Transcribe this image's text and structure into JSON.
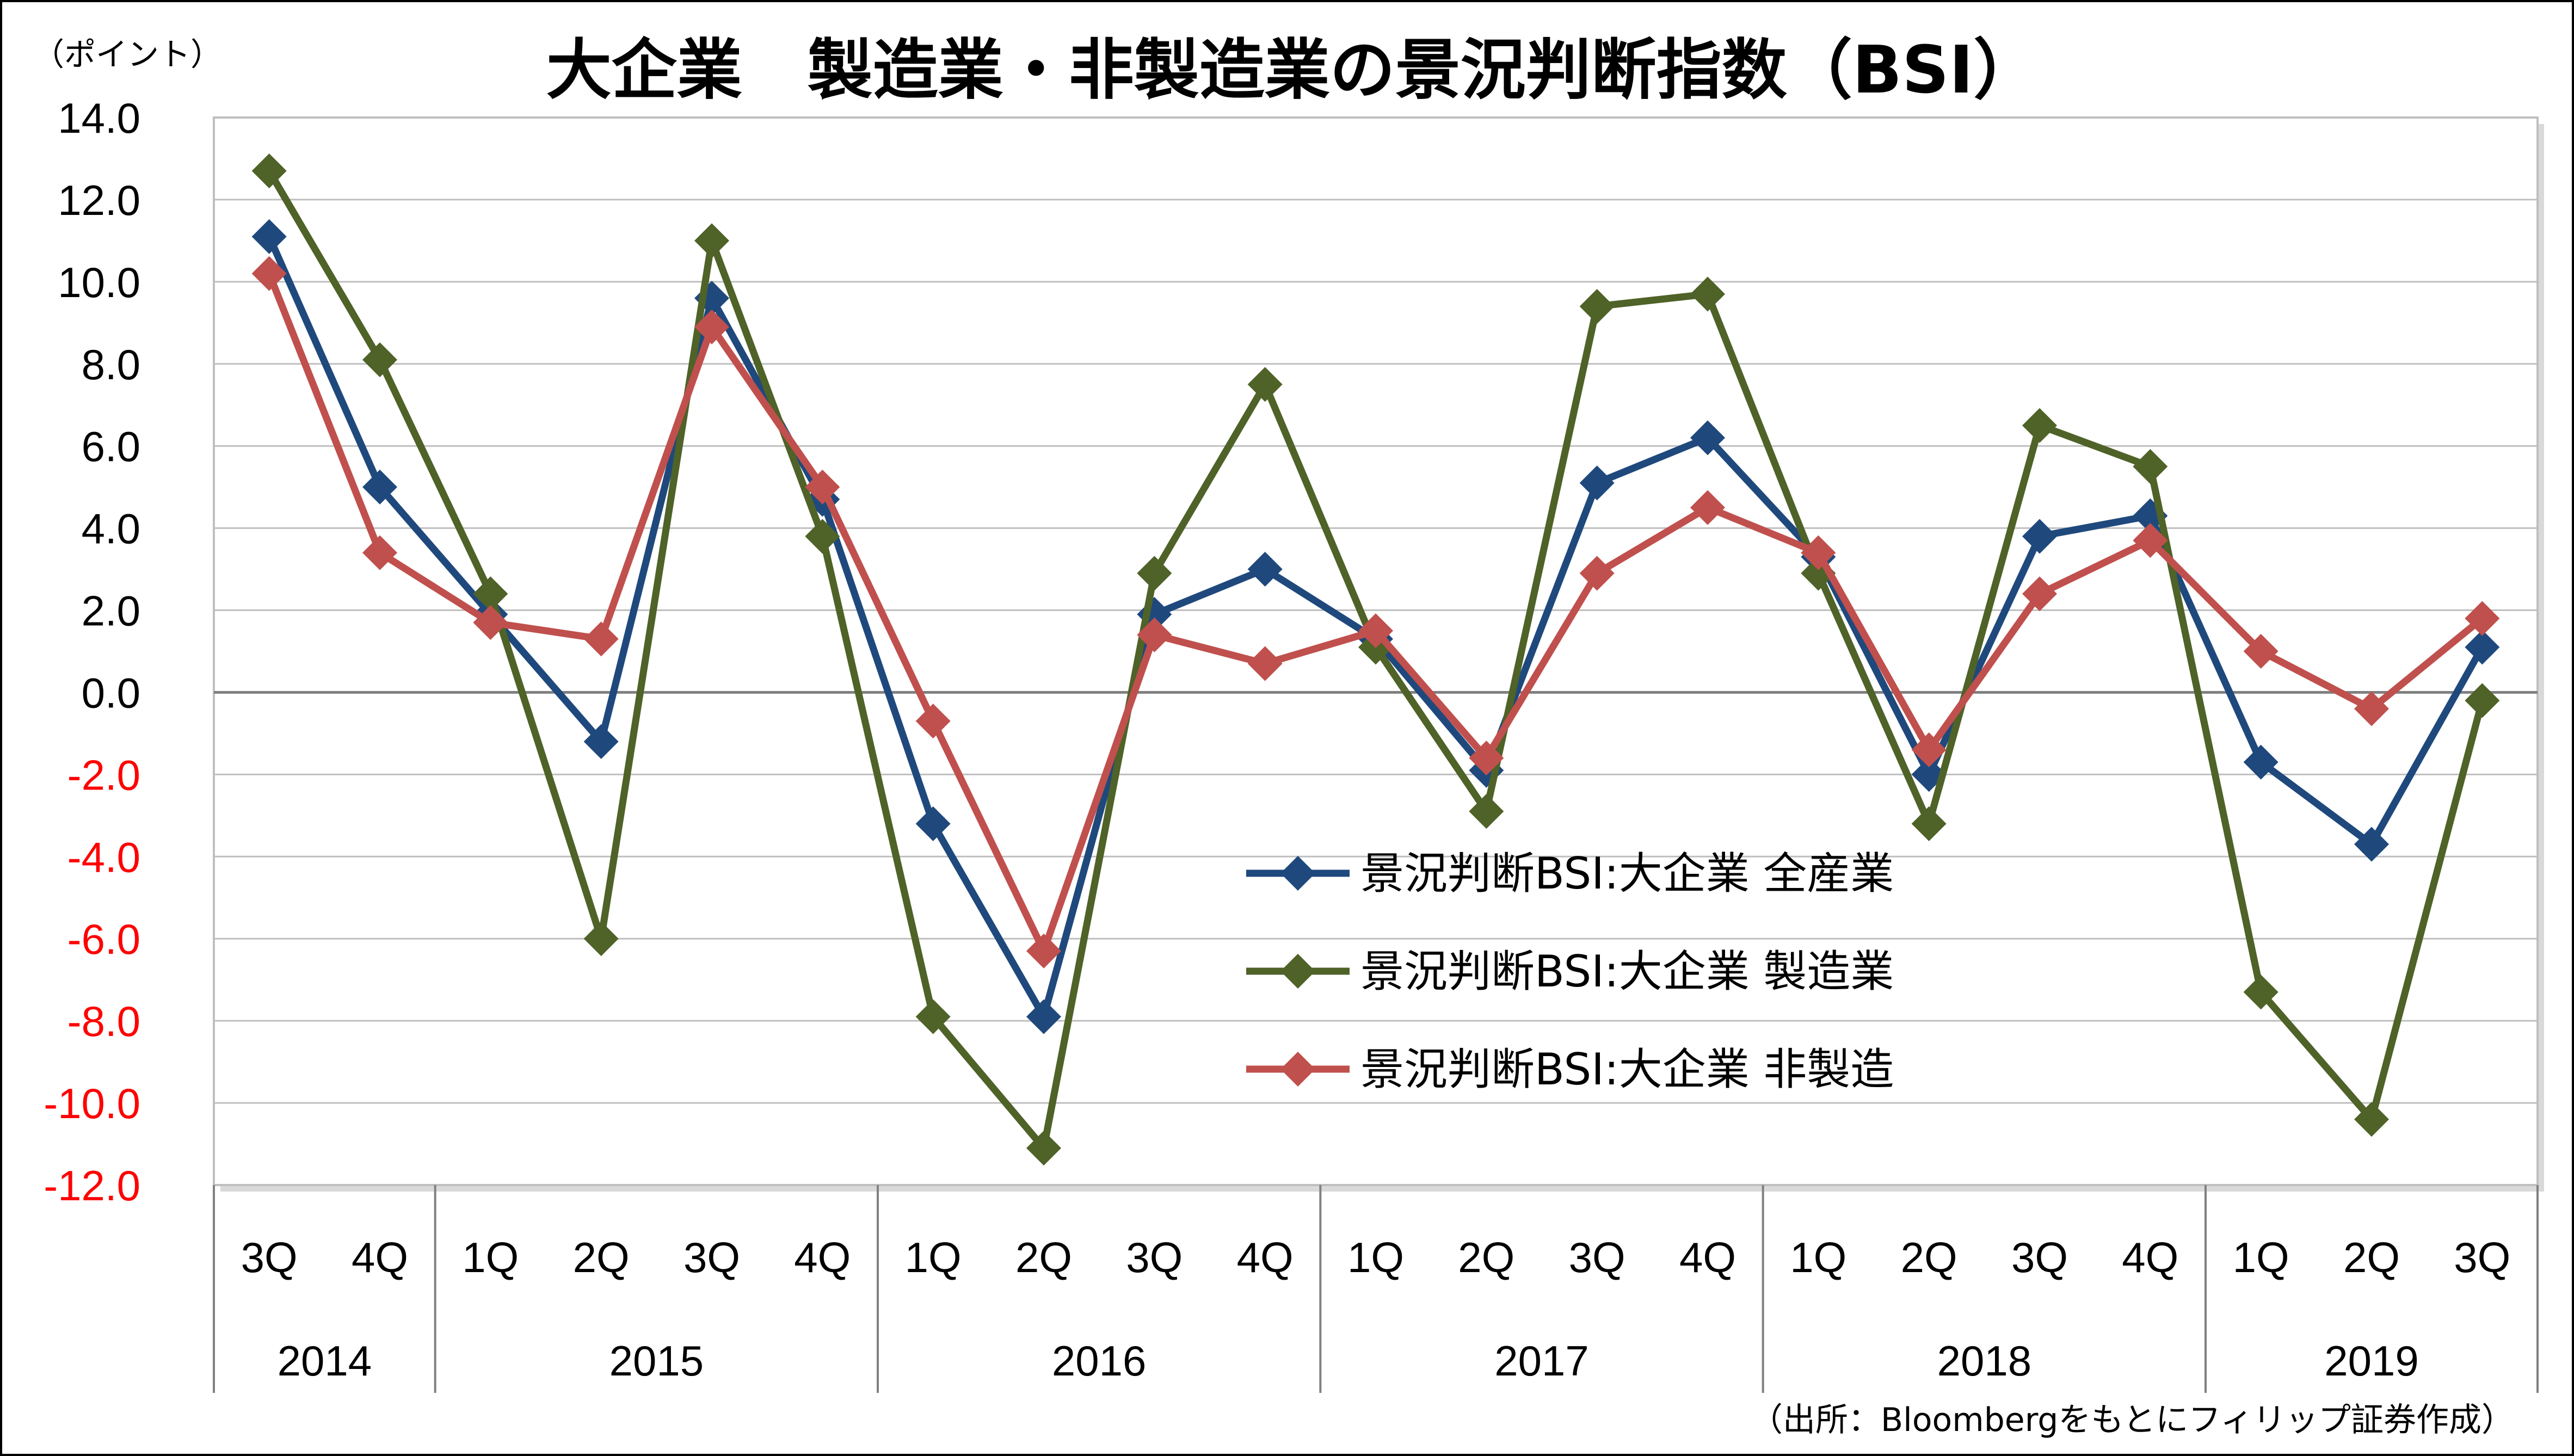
{
  "chart_data": {
    "type": "line",
    "title": "大企業　製造業・非製造業の景況判断指数（BSI）",
    "unit_label": "（ポイント）",
    "source": "（出所：Bloombergをもとにフィリップ証券作成）",
    "categories": [
      "3Q",
      "4Q",
      "1Q",
      "2Q",
      "3Q",
      "4Q",
      "1Q",
      "2Q",
      "3Q",
      "4Q",
      "1Q",
      "2Q",
      "3Q",
      "4Q",
      "1Q",
      "2Q",
      "3Q",
      "4Q",
      "1Q",
      "2Q",
      "3Q"
    ],
    "years": [
      {
        "label": "2014",
        "count": 2
      },
      {
        "label": "2015",
        "count": 4
      },
      {
        "label": "2016",
        "count": 4
      },
      {
        "label": "2017",
        "count": 4
      },
      {
        "label": "2018",
        "count": 4
      },
      {
        "label": "2019",
        "count": 3
      }
    ],
    "ylim": [
      -12,
      14
    ],
    "ytick_labels": [
      "14.0",
      "12.0",
      "10.0",
      "8.0",
      "6.0",
      "4.0",
      "2.0",
      "0.0",
      "-2.0",
      "-4.0",
      "-6.0",
      "-8.0",
      "-10.0",
      "-12.0"
    ],
    "negative_tick_color": "#ff0000",
    "grid": true,
    "legend_position": "center",
    "series": [
      {
        "name": "景況判断BSI:大企業 全産業",
        "color": "#1f497d",
        "values": [
          11.1,
          5.0,
          1.9,
          -1.2,
          9.6,
          4.7,
          -3.2,
          -7.9,
          1.9,
          3.0,
          1.3,
          -1.9,
          5.1,
          6.2,
          3.3,
          -2.0,
          3.8,
          4.3,
          -1.7,
          -3.7,
          1.1
        ]
      },
      {
        "name": "景況判断BSI:大企業 製造業",
        "color": "#4f6228",
        "values": [
          12.7,
          8.1,
          2.4,
          -6.0,
          11.0,
          3.8,
          -7.9,
          -11.1,
          2.9,
          7.5,
          1.1,
          -2.9,
          9.4,
          9.7,
          2.9,
          -3.2,
          6.5,
          5.5,
          -7.3,
          -10.4,
          -0.2
        ]
      },
      {
        "name": "景況判断BSI:大企業 非製造",
        "color": "#c0504d",
        "values": [
          10.2,
          3.4,
          1.7,
          1.3,
          8.9,
          5.0,
          -0.7,
          -6.3,
          1.4,
          0.7,
          1.5,
          -1.6,
          2.9,
          4.5,
          3.4,
          -1.4,
          2.4,
          3.7,
          1.0,
          -0.4,
          1.8
        ]
      }
    ]
  }
}
